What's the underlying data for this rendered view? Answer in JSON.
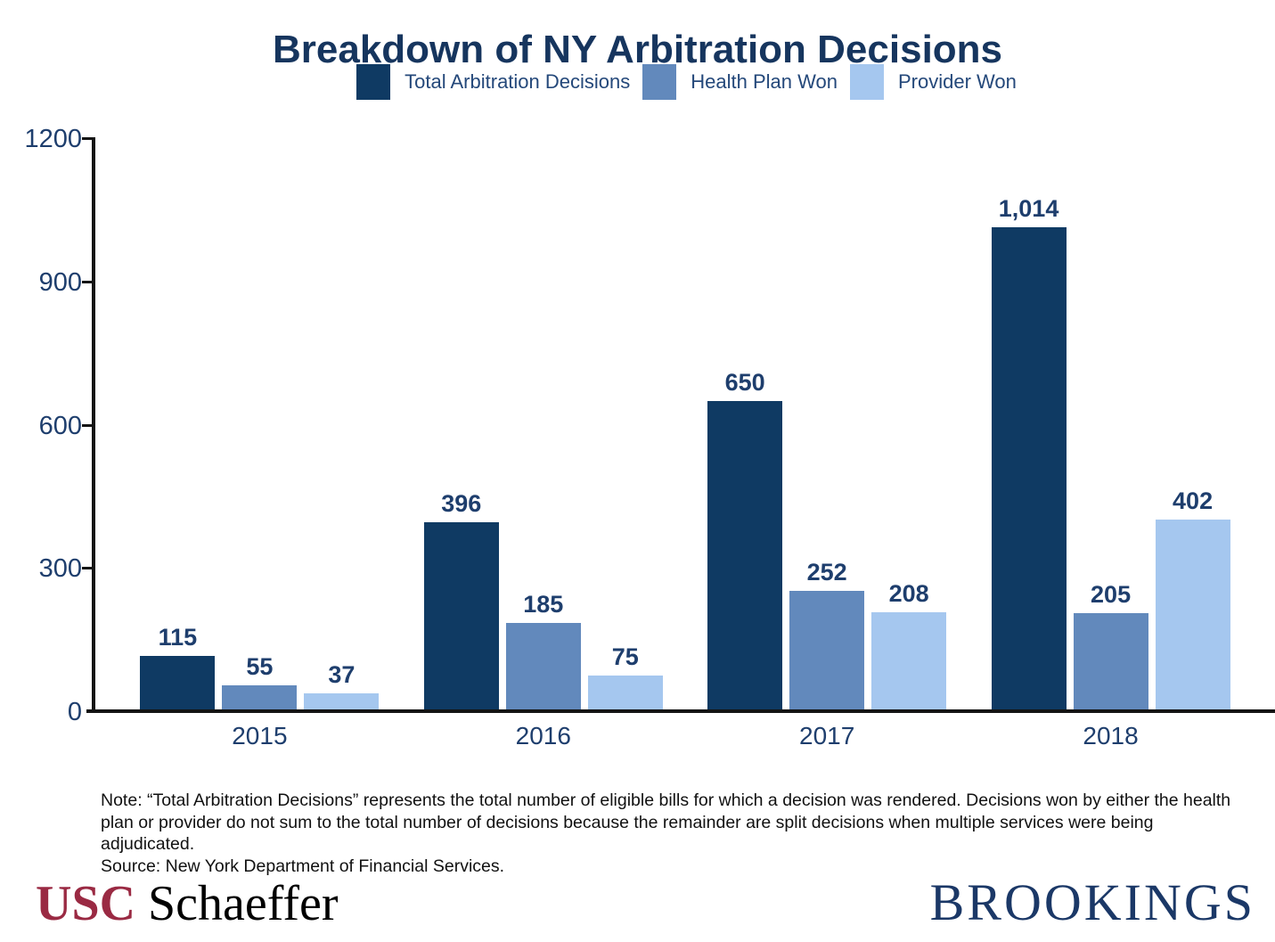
{
  "title": "Breakdown of NY Arbitration Decisions",
  "chart_data": {
    "type": "bar",
    "title": "Breakdown of NY Arbitration Decisions",
    "categories": [
      "2015",
      "2016",
      "2017",
      "2018"
    ],
    "series": [
      {
        "name": "Total Arbitration Decisions",
        "color": "#0F3A63",
        "values": [
          115,
          396,
          650,
          1014
        ],
        "labels": [
          "115",
          "396",
          "650",
          "1,014"
        ]
      },
      {
        "name": "Health Plan Won",
        "color": "#6289BC",
        "values": [
          55,
          185,
          252,
          205
        ],
        "labels": [
          "55",
          "185",
          "252",
          "205"
        ]
      },
      {
        "name": "Provider Won",
        "color": "#A5C7EF",
        "values": [
          37,
          75,
          208,
          402
        ],
        "labels": [
          "37",
          "75",
          "208",
          "402"
        ]
      }
    ],
    "xlabel": "",
    "ylabel": "",
    "ylim": [
      0,
      1200
    ],
    "yticks": [
      0,
      300,
      600,
      900,
      1200
    ],
    "grid": false,
    "legend_position": "top"
  },
  "note": {
    "text": "Note: “Total Arbitration Decisions” represents the total number of eligible bills for which a decision was rendered. Decisions won by either the health plan or provider do not sum to the total number of decisions because the remainder are split decisions when multiple services were being adjudicated.",
    "source": "Source: New York Department of Financial Services."
  },
  "footer": {
    "usc": "USC",
    "schaeffer": "Schaeffer",
    "brookings": "BROOKINGS"
  }
}
